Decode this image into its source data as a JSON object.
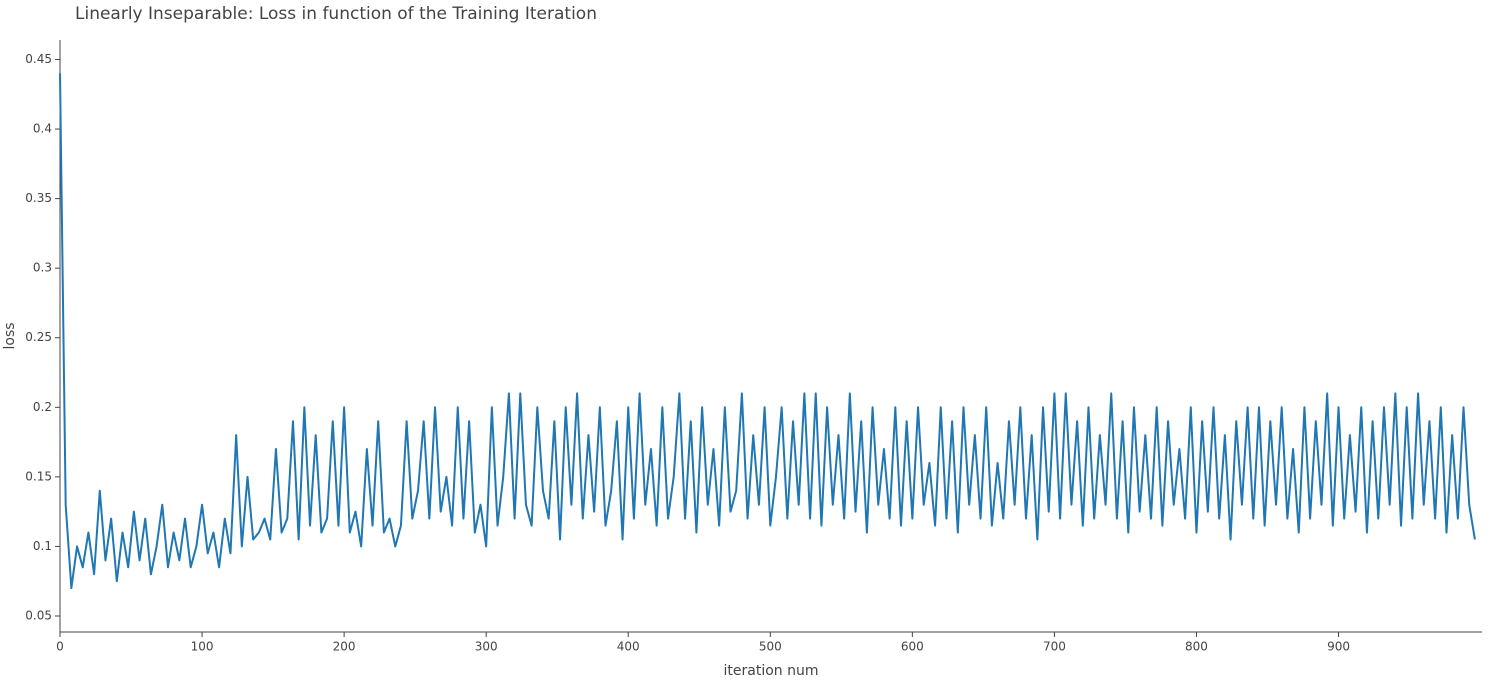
{
  "chart_data": {
    "type": "line",
    "title": "Linearly Inseparable: Loss in function of the Training Iteration",
    "x_label": "iteration num",
    "y_label": "loss",
    "xlim": [
      0,
      1001
    ],
    "ylim": [
      0.0385,
      0.464
    ],
    "xticks": [
      0,
      100,
      200,
      300,
      400,
      500,
      600,
      700,
      800,
      900
    ],
    "yticks": [
      0.05,
      0.1,
      0.15,
      0.2,
      0.25,
      0.3,
      0.35,
      0.4,
      0.45
    ],
    "grid": false,
    "series": [
      {
        "name": "loss",
        "color": "#1f77b4",
        "x": [
          0,
          4,
          8,
          12,
          16,
          20,
          24,
          28,
          32,
          36,
          40,
          44,
          48,
          52,
          56,
          60,
          64,
          68,
          72,
          76,
          80,
          84,
          88,
          92,
          96,
          100,
          104,
          108,
          112,
          116,
          120,
          124,
          128,
          132,
          136,
          140,
          144,
          148,
          152,
          156,
          160,
          164,
          168,
          172,
          176,
          180,
          184,
          188,
          192,
          196,
          200,
          204,
          208,
          212,
          216,
          220,
          224,
          228,
          232,
          236,
          240,
          244,
          248,
          252,
          256,
          260,
          264,
          268,
          272,
          276,
          280,
          284,
          288,
          292,
          296,
          300,
          304,
          308,
          312,
          316,
          320,
          324,
          328,
          332,
          336,
          340,
          344,
          348,
          352,
          356,
          360,
          364,
          368,
          372,
          376,
          380,
          384,
          388,
          392,
          396,
          400,
          404,
          408,
          412,
          416,
          420,
          424,
          428,
          432,
          436,
          440,
          444,
          448,
          452,
          456,
          460,
          464,
          468,
          472,
          476,
          480,
          484,
          488,
          492,
          496,
          500,
          504,
          508,
          512,
          516,
          520,
          524,
          528,
          532,
          536,
          540,
          544,
          548,
          552,
          556,
          560,
          564,
          568,
          572,
          576,
          580,
          584,
          588,
          592,
          596,
          600,
          604,
          608,
          612,
          616,
          620,
          624,
          628,
          632,
          636,
          640,
          644,
          648,
          652,
          656,
          660,
          664,
          668,
          672,
          676,
          680,
          684,
          688,
          692,
          696,
          700,
          704,
          708,
          712,
          716,
          720,
          724,
          728,
          732,
          736,
          740,
          744,
          748,
          752,
          756,
          760,
          764,
          768,
          772,
          776,
          780,
          784,
          788,
          792,
          796,
          800,
          804,
          808,
          812,
          816,
          820,
          824,
          828,
          832,
          836,
          840,
          844,
          848,
          852,
          856,
          860,
          864,
          868,
          872,
          876,
          880,
          884,
          888,
          892,
          896,
          900,
          904,
          908,
          912,
          916,
          920,
          924,
          928,
          932,
          936,
          940,
          944,
          948,
          952,
          956,
          960,
          964,
          968,
          972,
          976,
          980,
          984,
          988,
          992,
          996
        ],
        "values": [
          0.44,
          0.13,
          0.07,
          0.1,
          0.085,
          0.11,
          0.08,
          0.14,
          0.09,
          0.12,
          0.075,
          0.11,
          0.085,
          0.125,
          0.09,
          0.12,
          0.08,
          0.1,
          0.13,
          0.085,
          0.11,
          0.09,
          0.12,
          0.085,
          0.1,
          0.13,
          0.095,
          0.11,
          0.085,
          0.12,
          0.095,
          0.18,
          0.1,
          0.15,
          0.105,
          0.11,
          0.12,
          0.105,
          0.17,
          0.11,
          0.12,
          0.19,
          0.105,
          0.2,
          0.115,
          0.18,
          0.11,
          0.12,
          0.19,
          0.115,
          0.2,
          0.11,
          0.125,
          0.1,
          0.17,
          0.115,
          0.19,
          0.11,
          0.12,
          0.1,
          0.115,
          0.19,
          0.12,
          0.14,
          0.19,
          0.12,
          0.2,
          0.125,
          0.15,
          0.115,
          0.2,
          0.12,
          0.19,
          0.11,
          0.13,
          0.1,
          0.2,
          0.115,
          0.15,
          0.21,
          0.12,
          0.21,
          0.13,
          0.115,
          0.2,
          0.14,
          0.12,
          0.19,
          0.105,
          0.2,
          0.13,
          0.21,
          0.12,
          0.18,
          0.125,
          0.2,
          0.115,
          0.14,
          0.19,
          0.105,
          0.2,
          0.12,
          0.21,
          0.13,
          0.17,
          0.115,
          0.2,
          0.12,
          0.15,
          0.21,
          0.12,
          0.19,
          0.11,
          0.2,
          0.13,
          0.17,
          0.115,
          0.2,
          0.125,
          0.14,
          0.21,
          0.12,
          0.18,
          0.13,
          0.2,
          0.115,
          0.15,
          0.2,
          0.12,
          0.19,
          0.13,
          0.21,
          0.12,
          0.21,
          0.115,
          0.2,
          0.13,
          0.18,
          0.12,
          0.21,
          0.125,
          0.19,
          0.11,
          0.2,
          0.13,
          0.17,
          0.12,
          0.2,
          0.115,
          0.19,
          0.12,
          0.2,
          0.13,
          0.16,
          0.115,
          0.2,
          0.12,
          0.19,
          0.11,
          0.2,
          0.13,
          0.18,
          0.12,
          0.2,
          0.115,
          0.16,
          0.12,
          0.19,
          0.13,
          0.2,
          0.12,
          0.18,
          0.105,
          0.2,
          0.125,
          0.21,
          0.12,
          0.21,
          0.13,
          0.19,
          0.115,
          0.2,
          0.12,
          0.18,
          0.13,
          0.21,
          0.12,
          0.19,
          0.11,
          0.2,
          0.125,
          0.18,
          0.12,
          0.2,
          0.115,
          0.19,
          0.13,
          0.17,
          0.12,
          0.2,
          0.11,
          0.19,
          0.125,
          0.2,
          0.12,
          0.18,
          0.105,
          0.19,
          0.13,
          0.2,
          0.12,
          0.2,
          0.115,
          0.19,
          0.13,
          0.2,
          0.12,
          0.17,
          0.11,
          0.2,
          0.12,
          0.19,
          0.13,
          0.21,
          0.115,
          0.2,
          0.12,
          0.18,
          0.125,
          0.2,
          0.11,
          0.19,
          0.12,
          0.2,
          0.13,
          0.21,
          0.115,
          0.2,
          0.12,
          0.21,
          0.13,
          0.19,
          0.12,
          0.2,
          0.11,
          0.18,
          0.12,
          0.2,
          0.13,
          0.105
        ]
      }
    ]
  }
}
